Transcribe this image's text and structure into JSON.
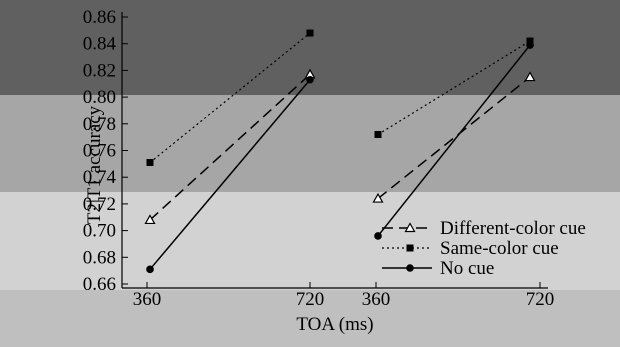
{
  "chart_data": {
    "type": "line",
    "title": "",
    "xlabel": "TOA (ms)",
    "ylabel": "T2|T1 accuracy",
    "ylim": [
      0.66,
      0.86
    ],
    "yticks": [
      "0.66",
      "0.68",
      "0.70",
      "0.72",
      "0.74",
      "0.76",
      "0.78",
      "0.80",
      "0.82",
      "0.84",
      "0.86"
    ],
    "xticks": [
      "360",
      "720",
      "360",
      "720"
    ],
    "legend_position": "bottom-right",
    "background_bands": [
      "#606060",
      "#a6a6a6",
      "#d2d2d2",
      "#bfbfbf"
    ],
    "panels": [
      {
        "categories": [
          "360",
          "720"
        ],
        "series": [
          {
            "name": "Different-color cue",
            "style": "dashed",
            "marker": "open-triangle",
            "values": [
              0.708,
              0.817
            ]
          },
          {
            "name": "Same-color cue",
            "style": "dotted",
            "marker": "filled-square",
            "values": [
              0.751,
              0.848
            ]
          },
          {
            "name": "No cue",
            "style": "solid",
            "marker": "filled-circle",
            "values": [
              0.671,
              0.813
            ]
          }
        ]
      },
      {
        "categories": [
          "360",
          "720"
        ],
        "series": [
          {
            "name": "Different-color cue",
            "style": "dashed",
            "marker": "open-triangle",
            "values": [
              0.724,
              0.815
            ]
          },
          {
            "name": "Same-color cue",
            "style": "dotted",
            "marker": "filled-square",
            "values": [
              0.772,
              0.842
            ]
          },
          {
            "name": "No cue",
            "style": "solid",
            "marker": "filled-circle",
            "values": [
              0.696,
              0.839
            ]
          }
        ]
      }
    ]
  }
}
